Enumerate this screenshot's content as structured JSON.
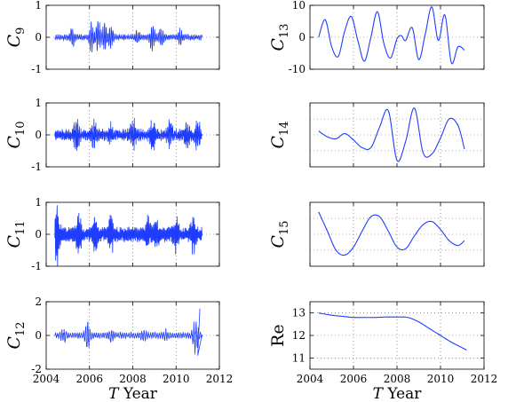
{
  "x_axis_label": "T Year",
  "chart_data": [
    {
      "id": "C9",
      "type": "line",
      "ylabel_base": "C",
      "ylabel_sub": "9",
      "xlim": [
        2004,
        2012
      ],
      "ylim": [
        -1,
        1
      ],
      "yticks": [
        -1,
        0,
        1
      ],
      "xticks": [
        2004,
        2006,
        2008,
        2010,
        2012
      ],
      "show_xtick_labels": false,
      "grid": "dotted",
      "color": "#1f3dff",
      "x": [
        2004.4,
        2011.2
      ],
      "bursts": [
        [
          2005.2,
          0.3
        ],
        [
          2006.1,
          0.45
        ],
        [
          2006.4,
          0.5
        ],
        [
          2006.7,
          0.4
        ],
        [
          2007.0,
          0.35
        ],
        [
          2008.2,
          0.2
        ],
        [
          2008.9,
          0.4
        ],
        [
          2009.3,
          0.3
        ],
        [
          2010.2,
          0.25
        ]
      ],
      "base_amplitude": 0.1,
      "freq_per_year": 90
    },
    {
      "id": "C10",
      "type": "line",
      "ylabel_base": "C",
      "ylabel_sub": "10",
      "xlim": [
        2004,
        2012
      ],
      "ylim": [
        -1,
        1
      ],
      "yticks": [
        -1,
        0,
        1
      ],
      "xticks": [
        2004,
        2006,
        2008,
        2010,
        2012
      ],
      "show_xtick_labels": false,
      "grid": "dotted",
      "color": "#1f3dff",
      "x": [
        2004.4,
        2011.2
      ],
      "bursts": [
        [
          2005.4,
          0.5
        ],
        [
          2006.2,
          0.45
        ],
        [
          2007.0,
          0.35
        ],
        [
          2008.0,
          0.5
        ],
        [
          2008.9,
          0.55
        ],
        [
          2009.7,
          0.45
        ],
        [
          2010.5,
          0.35
        ],
        [
          2011.0,
          0.45
        ]
      ],
      "base_amplitude": 0.2,
      "freq_per_year": 45
    },
    {
      "id": "C11",
      "type": "line",
      "ylabel_base": "C",
      "ylabel_sub": "11",
      "xlim": [
        2004,
        2012
      ],
      "ylim": [
        -1,
        1
      ],
      "yticks": [
        -1,
        0,
        1
      ],
      "xticks": [
        2004,
        2006,
        2008,
        2010,
        2012
      ],
      "show_xtick_labels": false,
      "grid": "dotted",
      "color": "#1f3dff",
      "x": [
        2004.4,
        2011.2
      ],
      "bursts": [
        [
          2004.5,
          0.95
        ],
        [
          2005.5,
          0.55
        ],
        [
          2006.3,
          0.6
        ],
        [
          2007.0,
          0.5
        ],
        [
          2008.7,
          0.4
        ],
        [
          2009.1,
          0.45
        ],
        [
          2010.0,
          0.5
        ],
        [
          2010.8,
          0.5
        ]
      ],
      "base_amplitude": 0.25,
      "freq_per_year": 22
    },
    {
      "id": "C12",
      "type": "line",
      "ylabel_base": "C",
      "ylabel_sub": "12",
      "xlim": [
        2004,
        2012
      ],
      "ylim": [
        -2,
        2
      ],
      "yticks": [
        -2,
        0,
        2
      ],
      "xticks": [
        2004,
        2006,
        2008,
        2010,
        2012
      ],
      "show_xtick_labels": true,
      "grid": "dotted",
      "color": "#1f3dff",
      "x": [
        2004.4,
        2011.2
      ],
      "bursts": [
        [
          2004.8,
          0.4
        ],
        [
          2005.9,
          0.8
        ],
        [
          2007.0,
          0.3
        ],
        [
          2008.5,
          0.3
        ],
        [
          2009.5,
          0.25
        ],
        [
          2010.9,
          1.2
        ]
      ],
      "base_amplitude": 0.2,
      "freq_per_year": 10,
      "end_values": [
        [
          2011.0,
          -1.2
        ],
        [
          2011.1,
          1.6
        ]
      ]
    },
    {
      "id": "C13",
      "type": "line",
      "ylabel_base": "C",
      "ylabel_sub": "13",
      "xlim": [
        2004,
        2012
      ],
      "ylim": [
        -10,
        10
      ],
      "yticks": [
        -10,
        0,
        10
      ],
      "xticks": [
        2004,
        2006,
        2008,
        2010,
        2012
      ],
      "show_xtick_labels": false,
      "grid": "dotted",
      "color": "#1f3dff",
      "x": [
        2004.4,
        2004.7,
        2005.0,
        2005.3,
        2005.6,
        2005.9,
        2006.2,
        2006.5,
        2006.8,
        2007.1,
        2007.4,
        2007.7,
        2008.0,
        2008.2,
        2008.4,
        2008.7,
        2009.0,
        2009.3,
        2009.6,
        2009.9,
        2010.2,
        2010.5,
        2010.8,
        2011.1
      ],
      "y": [
        0.0,
        5.5,
        -3.0,
        -6.0,
        2.0,
        6.5,
        -1.0,
        -7.5,
        0.0,
        8.0,
        -2.0,
        -6.5,
        -0.5,
        0.5,
        -1.0,
        3.0,
        -7.0,
        1.0,
        9.5,
        -1.0,
        7.0,
        -8.0,
        -3.0,
        -4.0
      ]
    },
    {
      "id": "C14",
      "type": "line",
      "ylabel_base": "C",
      "ylabel_sub": "14",
      "xlim": [
        2004,
        2012
      ],
      "ylim": [
        -5,
        5
      ],
      "yticks": [],
      "xticks": [
        2004,
        2006,
        2008,
        2010,
        2012
      ],
      "show_xtick_labels": false,
      "grid": "dotted",
      "color": "#1f3dff",
      "x": [
        2004.4,
        2004.8,
        2005.2,
        2005.6,
        2006.0,
        2006.4,
        2006.8,
        2007.2,
        2007.6,
        2008.0,
        2008.4,
        2008.8,
        2009.2,
        2009.6,
        2010.0,
        2010.4,
        2010.8,
        2011.1
      ],
      "y": [
        0.6,
        -0.3,
        -0.6,
        0.2,
        -0.8,
        -2.0,
        -2.0,
        1.2,
        3.8,
        -4.0,
        -1.0,
        4.2,
        -2.8,
        -3.0,
        -0.5,
        2.5,
        1.5,
        -2.2
      ]
    },
    {
      "id": "C15",
      "type": "line",
      "ylabel_base": "C",
      "ylabel_sub": "15",
      "xlim": [
        2004,
        2012
      ],
      "ylim": [
        -2,
        2
      ],
      "yticks": [],
      "xticks": [
        2004,
        2006,
        2008,
        2010,
        2012
      ],
      "show_xtick_labels": false,
      "grid": "dotted",
      "color": "#1f3dff",
      "x": [
        2004.4,
        2004.8,
        2005.2,
        2005.6,
        2006.0,
        2006.4,
        2006.8,
        2007.2,
        2007.6,
        2008.0,
        2008.4,
        2008.8,
        2009.2,
        2009.6,
        2010.0,
        2010.4,
        2010.8,
        2011.1
      ],
      "y": [
        1.4,
        0.2,
        -1.0,
        -1.3,
        -0.8,
        0.2,
        1.1,
        1.1,
        0.2,
        -0.8,
        -0.9,
        -0.1,
        0.6,
        0.8,
        0.3,
        -0.4,
        -0.7,
        -0.4
      ]
    },
    {
      "id": "Re",
      "type": "line",
      "ylabel_base": "Re",
      "ylabel_sub": "",
      "xlim": [
        2004,
        2012
      ],
      "ylim": [
        10.5,
        13.5
      ],
      "yticks": [
        11,
        12,
        13
      ],
      "xticks": [
        2004,
        2006,
        2008,
        2010,
        2012
      ],
      "show_xtick_labels": true,
      "grid": "dotted",
      "color": "#1f3dff",
      "x": [
        2004.4,
        2005.0,
        2005.5,
        2006.0,
        2006.5,
        2007.0,
        2007.5,
        2008.0,
        2008.5,
        2009.0,
        2009.5,
        2010.0,
        2010.5,
        2011.0,
        2011.2
      ],
      "y": [
        13.0,
        12.9,
        12.85,
        12.8,
        12.8,
        12.8,
        12.82,
        12.82,
        12.8,
        12.6,
        12.3,
        12.0,
        11.7,
        11.45,
        11.35
      ]
    }
  ]
}
